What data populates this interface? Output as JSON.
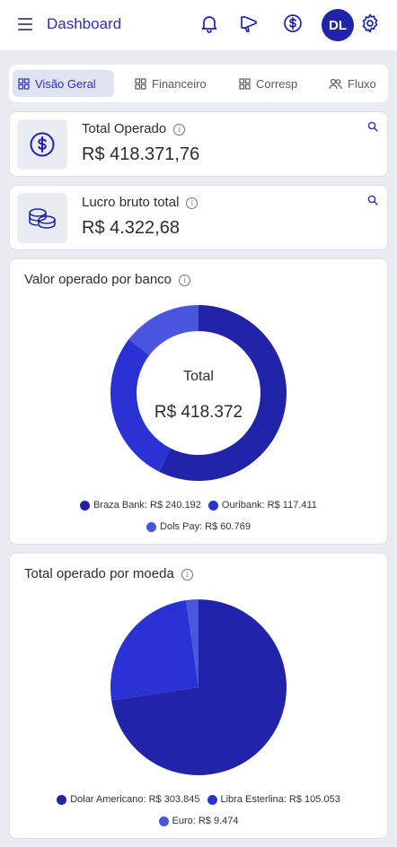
{
  "header": {
    "title": "Dashboard",
    "avatar_initials": "DL",
    "icons": [
      "menu-icon",
      "bell-icon",
      "megaphone-icon",
      "dollar-icon",
      "gear-icon"
    ]
  },
  "tabs": [
    {
      "label": "Visão Geral",
      "active": true
    },
    {
      "label": "Financeiro",
      "active": false
    },
    {
      "label": "Corresp",
      "active": false
    },
    {
      "label": "Fluxo",
      "active": false
    }
  ],
  "stats": {
    "total_operado": {
      "label": "Total Operado",
      "value": "R$ 418.371,76"
    },
    "lucro_bruto": {
      "label": "Lucro bruto total",
      "value": "R$ 4.322,68"
    }
  },
  "colors": {
    "primary": "#2123a8",
    "series": [
      "#2123a8",
      "#2a32d4",
      "#4a56de"
    ]
  },
  "bank_chart": {
    "title": "Valor operado por banco",
    "center_label": "Total",
    "center_value": "R$ 418.372",
    "legend": [
      {
        "label": "Braza Bank: R$ 240.192"
      },
      {
        "label": "Ouribank: R$ 117.411"
      },
      {
        "label": "Dols Pay: R$ 60.769"
      }
    ]
  },
  "currency_chart": {
    "title": "Total operado por moeda",
    "legend": [
      {
        "label": "Dolar Americano: R$ 303.845"
      },
      {
        "label": "Libra Esterlina: R$ 105.053"
      },
      {
        "label": "Euro: R$ 9.474"
      }
    ]
  },
  "chart_data": [
    {
      "type": "pie",
      "title": "Valor operado por banco",
      "categories": [
        "Braza Bank",
        "Ouribank",
        "Dols Pay"
      ],
      "values": [
        240192,
        117411,
        60769
      ]
    },
    {
      "type": "pie",
      "title": "Total operado por moeda",
      "categories": [
        "Dolar Americano",
        "Libra Esterlina",
        "Euro"
      ],
      "values": [
        303845,
        105053,
        9474
      ]
    }
  ]
}
